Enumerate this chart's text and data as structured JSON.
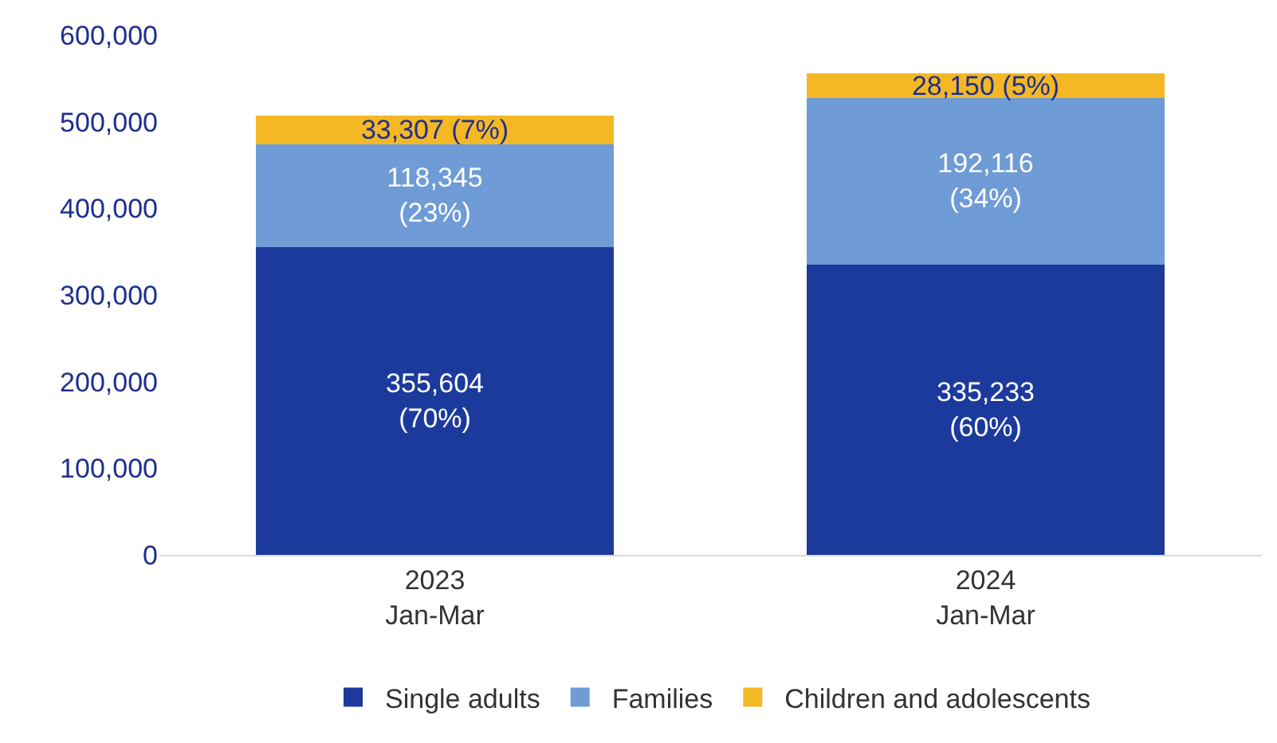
{
  "chart_data": {
    "type": "bar",
    "stacked": true,
    "categories": [
      "2023\nJan-Mar",
      "2024\nJan-Mar"
    ],
    "series": [
      {
        "name": "Single adults",
        "color": "#1c3a9c",
        "values": [
          355604,
          335233
        ],
        "value_labels": [
          "355,604\n(70%)",
          "335,233\n(60%)"
        ]
      },
      {
        "name": "Families",
        "color": "#6f9bd6",
        "values": [
          118345,
          192116
        ],
        "value_labels": [
          "118,345\n(23%)",
          "192,116\n(34%)"
        ]
      },
      {
        "name": "Children and adolescents",
        "color": "#f4b824",
        "values": [
          33307,
          28150
        ],
        "value_labels": [
          "33,307 (7%)",
          "28,150 (5%)"
        ]
      }
    ],
    "ylim": [
      0,
      600000
    ],
    "yticks": [
      {
        "value": 0,
        "label": "0"
      },
      {
        "value": 100000,
        "label": "100,000"
      },
      {
        "value": 200000,
        "label": "200,000"
      },
      {
        "value": 300000,
        "label": "300,000"
      },
      {
        "value": 400000,
        "label": "400,000"
      },
      {
        "value": 500000,
        "label": "500,000"
      },
      {
        "value": 600000,
        "label": "600,000"
      }
    ],
    "legend": "bottom"
  }
}
